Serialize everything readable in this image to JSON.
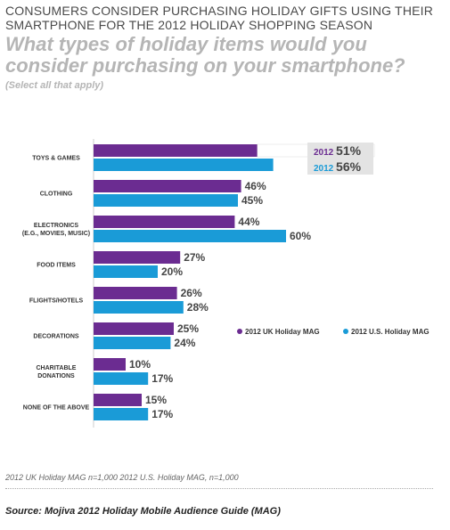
{
  "header": {
    "title_line1": "CONSUMERS CONSIDER PURCHASING HOLIDAY GIFTS USING THEIR",
    "title_line2": "SMARTPHONE FOR THE 2012 HOLIDAY SHOPPING SEASON",
    "question_line1": "What types of holiday items would you",
    "question_line2": "consider purchasing on your smartphone?",
    "note": "(Select all that apply)"
  },
  "colors": {
    "uk": "#6b2c91",
    "us": "#1a9bd7",
    "callout_bg": "#e3e3e3"
  },
  "chart_data": {
    "type": "bar",
    "orientation": "horizontal",
    "categories": [
      "TOYS & GAMES",
      "CLOTHING",
      "ELECTRONICS\n(E.G., MOVIES, MUSIC)",
      "FOOD ITEMS",
      "FLIGHTS/HOTELS",
      "DECORATIONS",
      "CHARITABLE\nDONATIONS",
      "NONE OF THE ABOVE"
    ],
    "series": [
      {
        "name": "2012 UK Holiday MAG",
        "values": [
          51,
          46,
          44,
          27,
          26,
          25,
          10,
          15
        ]
      },
      {
        "name": "2012 U.S. Holiday MAG",
        "values": [
          56,
          45,
          60,
          20,
          28,
          24,
          17,
          17
        ]
      }
    ],
    "value_suffix": "%",
    "callout": {
      "year": "2012",
      "uk_value": "51%",
      "us_value": "56%"
    },
    "legend_position": "right",
    "grid": false
  },
  "footer": {
    "sample_sizes": "2012 UK Holiday MAG n=1,000     2012 U.S. Holiday MAG, n=1,000",
    "source": "Source: Mojiva 2012 Holiday Mobile Audience Guide (MAG)"
  }
}
